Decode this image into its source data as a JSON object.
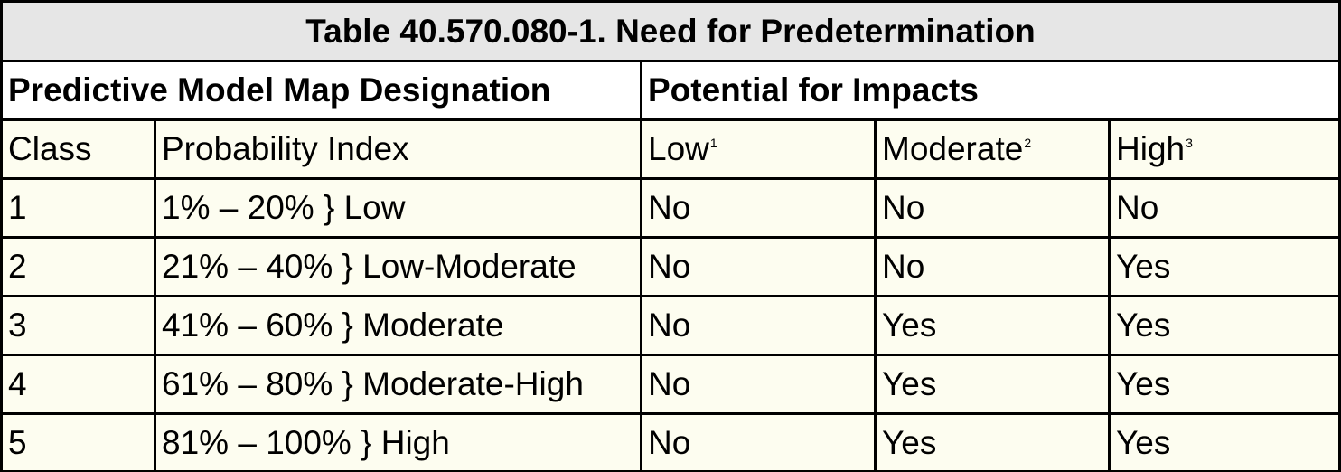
{
  "title": "Table 40.570.080-1. Need for Predetermination",
  "group_headers": [
    "Predictive Model Map Designation",
    "Potential for Impacts"
  ],
  "column_headers": [
    {
      "text": "Class"
    },
    {
      "text": "Probability Index"
    },
    {
      "text": "Low",
      "note": "1"
    },
    {
      "text": "Moderate",
      "note": "2"
    },
    {
      "text": "High",
      "note": "3"
    }
  ],
  "rows": [
    [
      "1",
      "1% – 20% } Low",
      "No",
      "No",
      "No"
    ],
    [
      "2",
      "21% – 40% } Low-Moderate",
      "No",
      "No",
      "Yes"
    ],
    [
      "3",
      "41% – 60% } Moderate",
      "No",
      "Yes",
      "Yes"
    ],
    [
      "4",
      "61% – 80% } Moderate-High",
      "No",
      "Yes",
      "Yes"
    ],
    [
      "5",
      "81% – 100% } High",
      "No",
      "Yes",
      "Yes"
    ]
  ]
}
